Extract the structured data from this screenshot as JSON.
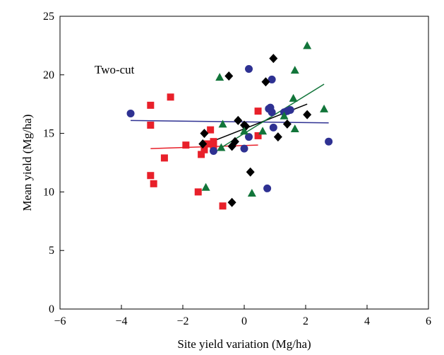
{
  "chart_data": {
    "type": "scatter",
    "title": "",
    "annotation": "Two-cut",
    "xlabel": "Site yield variation (Mg/ha)",
    "ylabel": "Mean yield (Mg/ha)",
    "xlim": [
      -6,
      6
    ],
    "ylim": [
      0,
      25
    ],
    "xticks": [
      "−6",
      "−4",
      "−2",
      "0",
      "2",
      "4",
      "6"
    ],
    "yticks": [
      "0",
      "5",
      "10",
      "15",
      "20",
      "25"
    ],
    "grid": false,
    "legend": "none",
    "series": [
      {
        "marker": "square",
        "color": "#e8202a",
        "points": [
          [
            -3.05,
            17.4
          ],
          [
            -3.05,
            15.7
          ],
          [
            -2.4,
            18.1
          ],
          [
            -3.05,
            11.4
          ],
          [
            -2.95,
            10.7
          ],
          [
            -2.6,
            12.9
          ],
          [
            -1.9,
            14.0
          ],
          [
            -1.5,
            10.0
          ],
          [
            -1.4,
            13.2
          ],
          [
            -1.3,
            13.6
          ],
          [
            -1.2,
            14.1
          ],
          [
            -1.1,
            15.3
          ],
          [
            -1.0,
            14.3
          ],
          [
            -1.0,
            13.8
          ],
          [
            -0.7,
            8.8
          ],
          [
            0.45,
            16.9
          ],
          [
            0.45,
            14.8
          ]
        ],
        "trend": [
          [
            -3.05,
            13.7
          ],
          [
            0.45,
            14.0
          ]
        ]
      },
      {
        "marker": "circle",
        "color": "#2e3192",
        "points": [
          [
            -3.7,
            16.7
          ],
          [
            -1.0,
            13.5
          ],
          [
            0.0,
            13.7
          ],
          [
            0.15,
            14.7
          ],
          [
            0.15,
            20.5
          ],
          [
            0.75,
            10.3
          ],
          [
            0.8,
            17.1
          ],
          [
            0.85,
            17.2
          ],
          [
            0.9,
            19.6
          ],
          [
            0.9,
            16.8
          ],
          [
            0.95,
            15.5
          ],
          [
            1.3,
            16.8
          ],
          [
            1.4,
            16.9
          ],
          [
            1.5,
            17.0
          ],
          [
            2.75,
            14.3
          ]
        ],
        "trend": [
          [
            -3.7,
            16.1
          ],
          [
            2.75,
            15.9
          ]
        ]
      },
      {
        "marker": "diamond",
        "color": "#000000",
        "points": [
          [
            -1.3,
            15.0
          ],
          [
            -1.35,
            14.1
          ],
          [
            -0.5,
            19.9
          ],
          [
            -0.4,
            9.1
          ],
          [
            -0.4,
            13.9
          ],
          [
            -0.3,
            14.3
          ],
          [
            -0.2,
            16.1
          ],
          [
            0.0,
            15.7
          ],
          [
            0.05,
            15.6
          ],
          [
            0.2,
            11.7
          ],
          [
            0.7,
            19.4
          ],
          [
            0.95,
            21.4
          ],
          [
            1.1,
            14.7
          ],
          [
            1.4,
            15.8
          ],
          [
            2.05,
            16.6
          ]
        ],
        "trend": [
          [
            -1.35,
            14.0
          ],
          [
            2.05,
            17.5
          ]
        ]
      },
      {
        "marker": "triangle",
        "color": "#12753a",
        "points": [
          [
            -0.8,
            19.8
          ],
          [
            -0.7,
            15.8
          ],
          [
            -0.75,
            13.8
          ],
          [
            -1.25,
            10.4
          ],
          [
            0.0,
            15.2
          ],
          [
            0.25,
            9.9
          ],
          [
            0.6,
            15.2
          ],
          [
            1.3,
            16.5
          ],
          [
            1.6,
            18.0
          ],
          [
            1.65,
            20.4
          ],
          [
            1.65,
            15.4
          ],
          [
            2.05,
            22.5
          ],
          [
            2.6,
            17.1
          ]
        ],
        "trend": [
          [
            -0.8,
            13.7
          ],
          [
            2.6,
            19.2
          ]
        ]
      }
    ]
  }
}
